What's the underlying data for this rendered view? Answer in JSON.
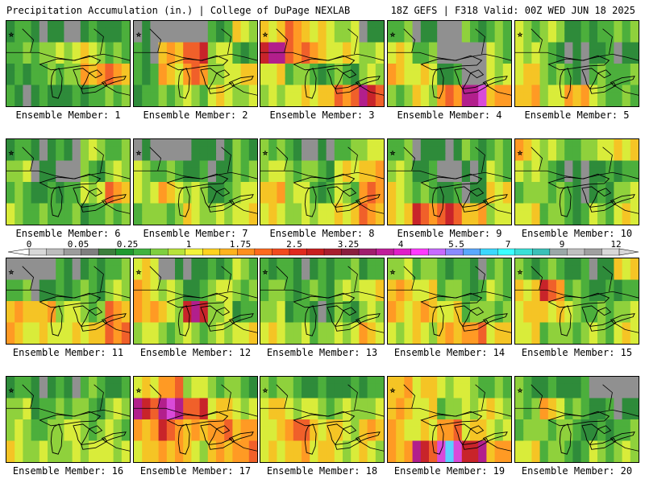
{
  "header": {
    "title_left": "Precipitation Accumulation (in.) | College of DuPage NEXLAB",
    "title_right": "18Z GEFS | F318 Valid: 00Z WED JUN 18 2025"
  },
  "members": [
    {
      "label": "Ensemble Member: 1",
      "pattern": [
        2,
        1,
        0,
        1,
        1,
        2,
        3,
        4,
        4,
        2,
        1,
        2,
        3,
        6,
        6,
        1,
        1,
        1,
        2,
        3
      ]
    },
    {
      "label": "Ensemble Member: 2",
      "pattern": [
        0,
        -1,
        0,
        2,
        4,
        1,
        5,
        7,
        4,
        2,
        2,
        5,
        6,
        3,
        5,
        2,
        3,
        3,
        4,
        3
      ]
    },
    {
      "label": "Ensemble Member: 3",
      "pattern": [
        5,
        6,
        4,
        3,
        1,
        9,
        7,
        5,
        4,
        3,
        4,
        3,
        2,
        2,
        3,
        3,
        4,
        5,
        7,
        8
      ]
    },
    {
      "label": "Ensemble Member: 4",
      "pattern": [
        2,
        1,
        0,
        2,
        2,
        4,
        2,
        0,
        0,
        3,
        5,
        4,
        1,
        0,
        4,
        3,
        4,
        6,
        9,
        6
      ]
    },
    {
      "label": "Ensemble Member: 5",
      "pattern": [
        3,
        3,
        1,
        2,
        3,
        4,
        2,
        0,
        1,
        1,
        5,
        3,
        1,
        2,
        2,
        5,
        4,
        6,
        3,
        2
      ]
    },
    {
      "label": "Ensemble Member: 6",
      "pattern": [
        2,
        1,
        1,
        3,
        2,
        3,
        1,
        0,
        2,
        3,
        2,
        1,
        2,
        4,
        6,
        3,
        2,
        2,
        2,
        3
      ]
    },
    {
      "label": "Ensemble Member: 7",
      "pattern": [
        0,
        -1,
        1,
        1,
        2,
        3,
        2,
        1,
        1,
        3,
        4,
        5,
        3,
        1,
        4,
        3,
        3,
        4,
        3,
        4
      ]
    },
    {
      "label": "Ensemble Member: 8",
      "pattern": [
        3,
        1,
        0,
        2,
        4,
        4,
        3,
        2,
        4,
        5,
        5,
        4,
        2,
        3,
        6,
        4,
        3,
        4,
        5,
        6
      ]
    },
    {
      "label": "Ensemble Member: 9",
      "pattern": [
        2,
        1,
        1,
        2,
        2,
        3,
        1,
        0,
        1,
        3,
        4,
        2,
        1,
        1,
        5,
        5,
        7,
        7,
        5,
        4
      ]
    },
    {
      "label": "Ensemble Member: 10",
      "pattern": [
        5,
        3,
        2,
        4,
        5,
        4,
        2,
        0,
        1,
        2,
        3,
        3,
        1,
        1,
        3,
        4,
        3,
        2,
        3,
        4
      ]
    },
    {
      "label": "Ensemble Member: 11",
      "pattern": [
        0,
        -1,
        1,
        1,
        2,
        2,
        1,
        2,
        2,
        3,
        5,
        5,
        4,
        3,
        6,
        5,
        4,
        4,
        5,
        7
      ]
    },
    {
      "label": "Ensemble Member: 12",
      "pattern": [
        4,
        0,
        1,
        2,
        3,
        5,
        3,
        1,
        4,
        3,
        6,
        4,
        8,
        3,
        2,
        4,
        3,
        3,
        3,
        4
      ]
    },
    {
      "label": "Ensemble Member: 13",
      "pattern": [
        2,
        1,
        1,
        2,
        2,
        3,
        2,
        2,
        3,
        4,
        3,
        2,
        1,
        2,
        3,
        4,
        3,
        3,
        4,
        5
      ]
    },
    {
      "label": "Ensemble Member: 14",
      "pattern": [
        3,
        3,
        2,
        1,
        2,
        5,
        4,
        3,
        2,
        3,
        5,
        5,
        4,
        3,
        3,
        4,
        4,
        5,
        6,
        5
      ]
    },
    {
      "label": "Ensemble Member: 15",
      "pattern": [
        2,
        2,
        1,
        1,
        5,
        5,
        7,
        2,
        1,
        2,
        5,
        5,
        3,
        2,
        3,
        4,
        3,
        3,
        3,
        4
      ]
    },
    {
      "label": "Ensemble Member: 16",
      "pattern": [
        2,
        1,
        1,
        2,
        1,
        3,
        2,
        3,
        2,
        3,
        3,
        2,
        4,
        3,
        3,
        4,
        3,
        3,
        4,
        4
      ]
    },
    {
      "label": "Ensemble Member: 17",
      "pattern": [
        4,
        6,
        4,
        3,
        2,
        8,
        9,
        7,
        5,
        4,
        6,
        7,
        5,
        6,
        6,
        5,
        6,
        4,
        5,
        6
      ]
    },
    {
      "label": "Ensemble Member: 18",
      "pattern": [
        3,
        2,
        1,
        1,
        2,
        5,
        4,
        3,
        3,
        3,
        4,
        7,
        5,
        4,
        5,
        4,
        5,
        5,
        4,
        4
      ]
    },
    {
      "label": "Ensemble Member: 19",
      "pattern": [
        5,
        5,
        4,
        3,
        2,
        5,
        4,
        3,
        4,
        4,
        5,
        4,
        6,
        5,
        4,
        6,
        8,
        10,
        8,
        6
      ]
    },
    {
      "label": "Ensemble Member: 20",
      "pattern": [
        2,
        1,
        1,
        0,
        0,
        3,
        5,
        2,
        1,
        1,
        3,
        3,
        2,
        1,
        2,
        4,
        3,
        2,
        3,
        3
      ]
    }
  ],
  "colorbar": {
    "tick_labels": [
      "0",
      "0.05",
      "0.25",
      "1",
      "1.75",
      "2.5",
      "3.25",
      "4",
      "5.5",
      "7",
      "9",
      "12"
    ],
    "colors": [
      "#d8d8d8",
      "#bdbdbd",
      "#9c9c9c",
      "#7f7f7f",
      "#3c7f3c",
      "#1f9a2f",
      "#3fb33f",
      "#7fcf3f",
      "#b8e23a",
      "#f3f33a",
      "#ffd21e",
      "#ffb31e",
      "#ff8f1e",
      "#ff6a1e",
      "#f24a1e",
      "#e0281e",
      "#c81e1e",
      "#a81e2e",
      "#8a1e3e",
      "#a01e6e",
      "#c01e9a",
      "#e01ec8",
      "#ff3aff",
      "#c86aff",
      "#8a8aff",
      "#5aa8ff",
      "#3ad8ff",
      "#3affff",
      "#3ae0d8",
      "#3ac0b8",
      "#9aa8a8",
      "#c0c0c0",
      "#a0a0a0",
      "#d8d8d8"
    ]
  },
  "level_colors": [
    "#909090",
    "#2e8b3a",
    "#4caf3c",
    "#8fd13c",
    "#d9ec3a",
    "#f5c425",
    "#ff9a24",
    "#f0602a",
    "#c8242a",
    "#b21f8c",
    "#d94ad9",
    "#5bd0ff"
  ]
}
